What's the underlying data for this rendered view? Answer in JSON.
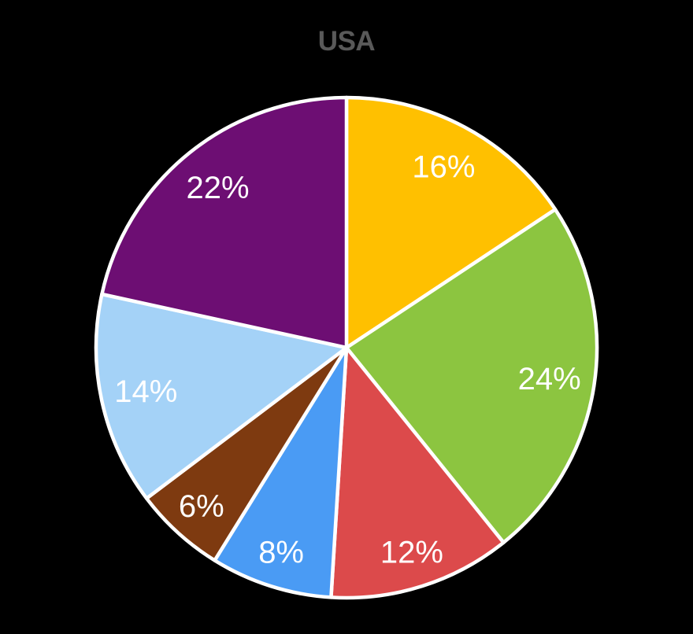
{
  "title": "USA",
  "chart_data": {
    "type": "pie",
    "title": "USA",
    "title_color": "#595959",
    "background": "#000000",
    "label_color": "#FFFFFF",
    "slice_border_color": "#FFFFFF",
    "start_angle_deg": 0,
    "direction": "clockwise",
    "legend": "none",
    "slices": [
      {
        "label": "16%",
        "value": 16,
        "color": "#FFC000"
      },
      {
        "label": "24%",
        "value": 24,
        "color": "#8CC540"
      },
      {
        "label": "12%",
        "value": 12,
        "color": "#DC4A4B"
      },
      {
        "label": "8%",
        "value": 8,
        "color": "#4A9BF4"
      },
      {
        "label": "6%",
        "value": 6,
        "color": "#7E3A10"
      },
      {
        "label": "14%",
        "value": 14,
        "color": "#A4D2F7"
      },
      {
        "label": "22%",
        "value": 22,
        "color": "#6D0E73"
      }
    ]
  }
}
